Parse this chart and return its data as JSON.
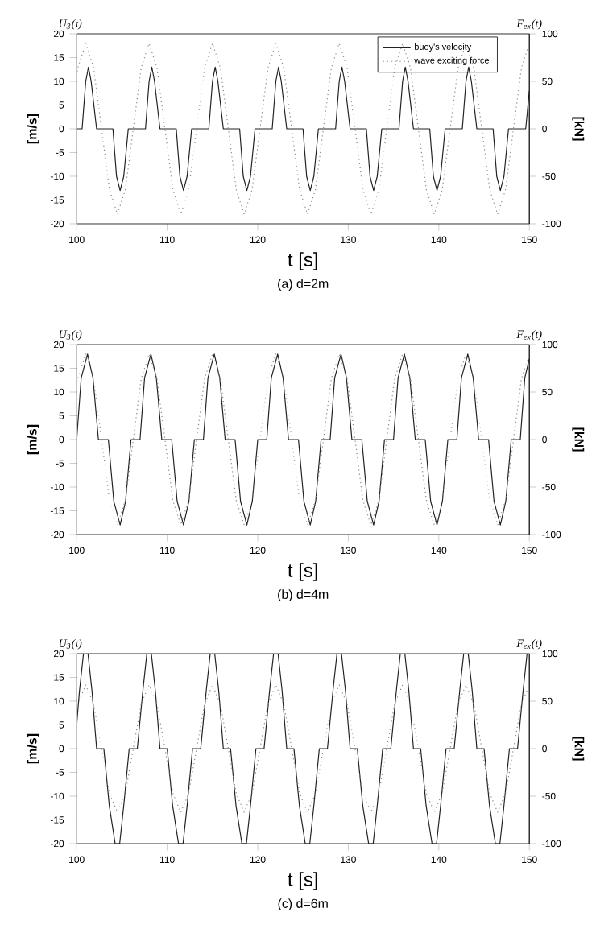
{
  "chart_data": [
    {
      "type": "line",
      "title": "(a) d=2m",
      "xlabel": "t [s]",
      "ylabel": "[m/s]",
      "y2label": "[kN]",
      "annotations": [
        "U$_{3}$(t)",
        "F$_{ex}$(t)"
      ],
      "xlim": [
        100,
        150
      ],
      "xticks": [
        100,
        110,
        120,
        130,
        140,
        150
      ],
      "ylim": [
        -20,
        20
      ],
      "yticks": [
        -20,
        -15,
        -10,
        -5,
        0,
        5,
        10,
        15,
        20
      ],
      "y2lim": [
        -100,
        100
      ],
      "y2ticks": [
        -100,
        -50,
        0,
        50,
        100
      ],
      "legend": "top right",
      "series": [
        {
          "name": "buoy's velocity",
          "color": "#222222",
          "line_style": "solid",
          "x": [
            100,
            100.6,
            101,
            101.3,
            101.6,
            102.2,
            104,
            104.4,
            104.8,
            105.2,
            105.7,
            107.6,
            108,
            108.3,
            108.6,
            109.2,
            111,
            111.4,
            111.8,
            112.2,
            112.7,
            114.6,
            115,
            115.3,
            115.6,
            116.2,
            118,
            118.4,
            118.8,
            119.2,
            119.7,
            121.6,
            122,
            122.3,
            122.6,
            123.2,
            125,
            125.4,
            125.8,
            126.2,
            126.7,
            128.6,
            129,
            129.3,
            129.6,
            130.2,
            132,
            132.4,
            132.8,
            133.2,
            133.7,
            135.6,
            136,
            136.3,
            136.6,
            137.2,
            139,
            139.4,
            139.8,
            140.2,
            140.7,
            142.6,
            143,
            143.3,
            143.6,
            144.2,
            146,
            146.4,
            146.8,
            147.2,
            147.7,
            149.6,
            150
          ],
          "values": [
            0,
            0,
            10,
            13,
            10,
            0,
            0,
            -10,
            -13,
            -10,
            0,
            0,
            10,
            13,
            10,
            0,
            0,
            -10,
            -13,
            -10,
            0,
            0,
            10,
            13,
            10,
            0,
            0,
            -10,
            -13,
            -10,
            0,
            0,
            10,
            13,
            10,
            0,
            0,
            -10,
            -13,
            -10,
            0,
            0,
            10,
            13,
            10,
            0,
            0,
            -10,
            -13,
            -10,
            0,
            0,
            10,
            13,
            10,
            0,
            0,
            -10,
            -13,
            -10,
            0,
            0,
            10,
            13,
            10,
            0,
            0,
            -10,
            -13,
            -10,
            0,
            0,
            8
          ]
        },
        {
          "name": "wave exciting force",
          "color": "#888888",
          "line_style": "dotted",
          "axis": "y2",
          "x": [
            100,
            100.125,
            101,
            101.875,
            102.75,
            103.625,
            104.5,
            105.375,
            106.25,
            107.125,
            108,
            108.875,
            109.75,
            110.625,
            111.5,
            112.375,
            113.25,
            114.125,
            115,
            115.875,
            116.75,
            117.625,
            118.5,
            119.375,
            120.25,
            121.125,
            122,
            122.875,
            123.75,
            124.625,
            125.5,
            126.375,
            127.25,
            128.125,
            129,
            129.875,
            130.75,
            131.625,
            132.5,
            133.375,
            134.25,
            135.125,
            136,
            136.875,
            137.75,
            138.625,
            139.5,
            140.375,
            141.25,
            142.125,
            143,
            143.875,
            144.75,
            145.625,
            146.5,
            147.375,
            148.25,
            149.125,
            150
          ],
          "values": [
            56,
            64,
            90,
            64,
            0,
            -64,
            -90,
            -64,
            0,
            64,
            90,
            64,
            0,
            -64,
            -90,
            -64,
            0,
            64,
            90,
            64,
            0,
            -64,
            -90,
            -64,
            0,
            64,
            90,
            64,
            0,
            -64,
            -90,
            -64,
            0,
            64,
            90,
            64,
            0,
            -64,
            -90,
            -64,
            0,
            64,
            90,
            64,
            0,
            -64,
            -90,
            -64,
            0,
            64,
            90,
            64,
            0,
            -64,
            -90,
            -64,
            0,
            64,
            90
          ]
        }
      ]
    },
    {
      "type": "line",
      "title": "(b) d=4m",
      "xlabel": "t [s]",
      "ylabel": "[m/s]",
      "y2label": "[kN]",
      "annotations": [
        "U$_{3}$(t)",
        "F$_{ex}$(t)"
      ],
      "xlim": [
        100,
        150
      ],
      "xticks": [
        100,
        110,
        120,
        130,
        140,
        150
      ],
      "ylim": [
        -20,
        20
      ],
      "yticks": [
        -20,
        -15,
        -10,
        -5,
        0,
        5,
        10,
        15,
        20
      ],
      "y2lim": [
        -100,
        100
      ],
      "y2ticks": [
        -100,
        -50,
        0,
        50,
        100
      ],
      "series": [
        {
          "color": "#222222",
          "line_style": "solid",
          "x": [
            100,
            100.5,
            101.2,
            101.8,
            102.4,
            103.5,
            104.1,
            104.8,
            105.4,
            106,
            107,
            107.5,
            108.2,
            108.8,
            109.4,
            110.5,
            111.1,
            111.8,
            112.4,
            113,
            114,
            114.5,
            115.2,
            115.8,
            116.4,
            117.5,
            118.1,
            118.8,
            119.4,
            120,
            121,
            121.5,
            122.2,
            122.8,
            123.4,
            124.5,
            125.1,
            125.8,
            126.4,
            127,
            128,
            128.5,
            129.2,
            129.8,
            130.4,
            131.5,
            132.1,
            132.8,
            133.4,
            134,
            135,
            135.5,
            136.2,
            136.8,
            137.4,
            138.5,
            139.1,
            139.8,
            140.4,
            141,
            142,
            142.5,
            143.2,
            143.8,
            144.4,
            145.5,
            146.1,
            146.8,
            147.4,
            148,
            149,
            149.5,
            150
          ],
          "values": [
            0,
            13,
            18,
            13,
            0,
            0,
            -13,
            -18,
            -13,
            0,
            0,
            13,
            18,
            13,
            0,
            0,
            -13,
            -18,
            -13,
            0,
            0,
            13,
            18,
            13,
            0,
            0,
            -13,
            -18,
            -13,
            0,
            0,
            13,
            18,
            13,
            0,
            0,
            -13,
            -18,
            -13,
            0,
            0,
            13,
            18,
            13,
            0,
            0,
            -13,
            -18,
            -13,
            0,
            0,
            13,
            18,
            13,
            0,
            0,
            -13,
            -18,
            -13,
            0,
            0,
            13,
            18,
            13,
            0,
            0,
            -13,
            -18,
            -13,
            0,
            0,
            13,
            17
          ]
        },
        {
          "color": "#888888",
          "line_style": "dotted",
          "axis": "y2",
          "x": [
            100,
            100.125,
            101,
            101.875,
            102.75,
            103.625,
            104.5,
            105.375,
            106.25,
            107.125,
            108,
            108.875,
            109.75,
            110.625,
            111.5,
            112.375,
            113.25,
            114.125,
            115,
            115.875,
            116.75,
            117.625,
            118.5,
            119.375,
            120.25,
            121.125,
            122,
            122.875,
            123.75,
            124.625,
            125.5,
            126.375,
            127.25,
            128.125,
            129,
            129.875,
            130.75,
            131.625,
            132.5,
            133.375,
            134.25,
            135.125,
            136,
            136.875,
            137.75,
            138.625,
            139.5,
            140.375,
            141.25,
            142.125,
            143,
            143.875,
            144.75,
            145.625,
            146.5,
            147.375,
            148.25,
            149.125,
            150
          ],
          "values": [
            56,
            64,
            90,
            64,
            0,
            -64,
            -90,
            -64,
            0,
            64,
            90,
            64,
            0,
            -64,
            -90,
            -64,
            0,
            64,
            90,
            64,
            0,
            -64,
            -90,
            -64,
            0,
            64,
            90,
            64,
            0,
            -64,
            -90,
            -64,
            0,
            64,
            90,
            64,
            0,
            -64,
            -90,
            -64,
            0,
            64,
            90,
            64,
            0,
            -64,
            -90,
            -64,
            0,
            64,
            90,
            64,
            0,
            -64,
            -90,
            -64,
            0,
            64,
            90
          ]
        }
      ]
    },
    {
      "type": "line",
      "title": "(c) d=6m",
      "xlabel": "t [s]",
      "ylabel": "[m/s]",
      "y2label": "[kN]",
      "annotations": [
        "U$_{3}$(t)",
        "F$_{ex}$(t)"
      ],
      "xlim": [
        100,
        150
      ],
      "xticks": [
        100,
        110,
        120,
        130,
        140,
        150
      ],
      "ylim": [
        -20,
        20
      ],
      "yticks": [
        -20,
        -15,
        -10,
        -5,
        0,
        5,
        10,
        15,
        20
      ],
      "y2lim": [
        -100,
        100
      ],
      "y2ticks": [
        -100,
        -50,
        0,
        50,
        100
      ],
      "series": [
        {
          "color": "#222222",
          "line_style": "solid",
          "x": [
            100,
            100.3,
            100.75,
            101.25,
            101.7,
            102.2,
            103,
            103.6,
            104.25,
            104.75,
            105.2,
            105.8,
            106.7,
            107.3,
            107.75,
            108.25,
            108.7,
            109.2,
            110,
            110.6,
            111.25,
            111.75,
            112.2,
            112.8,
            113.7,
            114.3,
            114.75,
            115.25,
            115.7,
            116.2,
            117,
            117.6,
            118.25,
            118.75,
            119.2,
            119.8,
            120.7,
            121.3,
            121.75,
            122.25,
            122.7,
            123.2,
            124,
            124.6,
            125.25,
            125.75,
            126.2,
            126.8,
            127.7,
            128.3,
            128.75,
            129.25,
            129.7,
            130.2,
            131,
            131.6,
            132.25,
            132.75,
            133.2,
            133.8,
            134.7,
            135.3,
            135.75,
            136.25,
            136.7,
            137.2,
            138,
            138.6,
            139.25,
            139.75,
            140.2,
            140.8,
            141.7,
            142.3,
            142.75,
            143.25,
            143.7,
            144.2,
            145,
            145.6,
            146.25,
            146.75,
            147.2,
            147.8,
            148.7,
            149.3,
            149.75,
            150
          ],
          "values": [
            5,
            12,
            20,
            20,
            12,
            0,
            0,
            -12,
            -20,
            -20,
            -12,
            0,
            0,
            12,
            20,
            20,
            12,
            0,
            0,
            -12,
            -20,
            -20,
            -12,
            0,
            0,
            12,
            20,
            20,
            12,
            0,
            0,
            -12,
            -20,
            -20,
            -12,
            0,
            0,
            12,
            20,
            20,
            12,
            0,
            0,
            -12,
            -20,
            -20,
            -12,
            0,
            0,
            12,
            20,
            20,
            12,
            0,
            0,
            -12,
            -20,
            -20,
            -12,
            0,
            0,
            12,
            20,
            20,
            12,
            0,
            0,
            -12,
            -20,
            -20,
            -12,
            0,
            0,
            12,
            20,
            20,
            12,
            0,
            0,
            -12,
            -20,
            -20,
            -12,
            0,
            0,
            12,
            20,
            20
          ]
        },
        {
          "color": "#888888",
          "line_style": "dotted",
          "axis": "y2",
          "x": [
            100,
            100.125,
            101,
            101.875,
            102.75,
            103.625,
            104.5,
            105.375,
            106.25,
            107.125,
            108,
            108.875,
            109.75,
            110.625,
            111.5,
            112.375,
            113.25,
            114.125,
            115,
            115.875,
            116.75,
            117.625,
            118.5,
            119.375,
            120.25,
            121.125,
            122,
            122.875,
            123.75,
            124.625,
            125.5,
            126.375,
            127.25,
            128.125,
            129,
            129.875,
            130.75,
            131.625,
            132.5,
            133.375,
            134.25,
            135.125,
            136,
            136.875,
            137.75,
            138.625,
            139.5,
            140.375,
            141.25,
            142.125,
            143,
            143.875,
            144.75,
            145.625,
            146.5,
            147.375,
            148.25,
            149.125,
            150
          ],
          "values": [
            42,
            47,
            67,
            47,
            0,
            -47,
            -67,
            -47,
            0,
            47,
            67,
            47,
            0,
            -47,
            -67,
            -47,
            0,
            47,
            67,
            47,
            0,
            -47,
            -67,
            -47,
            0,
            47,
            67,
            47,
            0,
            -47,
            -67,
            -47,
            0,
            47,
            67,
            47,
            0,
            -47,
            -67,
            -47,
            0,
            47,
            67,
            47,
            0,
            -47,
            -67,
            -47,
            0,
            47,
            67,
            47,
            0,
            -47,
            -67,
            -47,
            0,
            47,
            67
          ]
        }
      ]
    }
  ]
}
